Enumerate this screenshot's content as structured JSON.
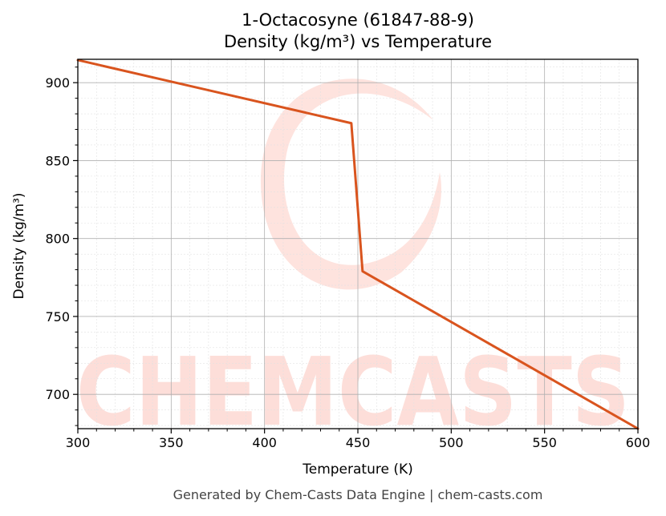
{
  "chart_data": {
    "type": "line",
    "title_line1": "1-Octacosyne (61847-88-9)",
    "title_line2": "Density (kg/m³) vs Temperature",
    "xlabel": "Temperature (K)",
    "ylabel": "Density (kg/m³)",
    "xlim": [
      300,
      600
    ],
    "ylim": [
      678,
      915
    ],
    "xticks": [
      300,
      350,
      400,
      450,
      500,
      550,
      600
    ],
    "yticks": [
      700,
      750,
      800,
      850,
      900
    ],
    "grid": true,
    "series": [
      {
        "x": [
          300,
          446.5,
          452.5,
          600
        ],
        "y": [
          914.5,
          874,
          779,
          678
        ],
        "color": "#d9541e"
      }
    ]
  },
  "watermark": {
    "text": "CHEMCASTS",
    "color": "#fdd9d3"
  },
  "footer": "Generated by Chem-Casts Data Engine | chem-casts.com"
}
